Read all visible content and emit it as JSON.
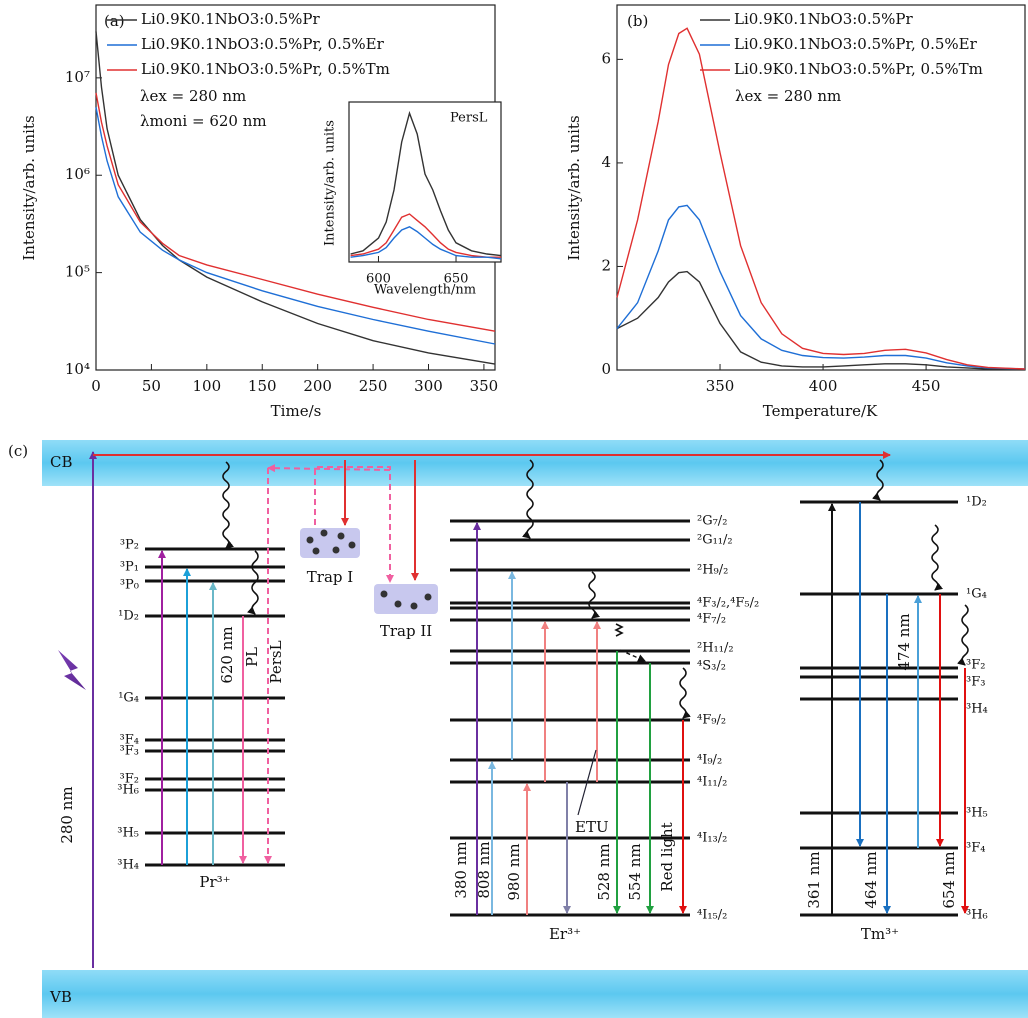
{
  "chart_data": [
    {
      "type": "line",
      "panel_label": "(a)",
      "xlabel": "Time/s",
      "ylabel": "Intensity/arb. units",
      "log_y": true,
      "xlim": [
        0,
        360
      ],
      "ylim": [
        10000,
        56000000
      ],
      "xticks": [
        0,
        50,
        100,
        150,
        200,
        250,
        300,
        350
      ],
      "yticks": [
        {
          "value": 10000,
          "label": "10⁴"
        },
        {
          "value": 100000,
          "label": "10⁵"
        },
        {
          "value": 1000000,
          "label": "10⁶"
        },
        {
          "value": 10000000,
          "label": "10⁷"
        }
      ],
      "annotations": [
        "λex = 280 nm",
        "λmoni = 620 nm"
      ],
      "legend": "upper center",
      "x": [
        0,
        5,
        10,
        20,
        40,
        60,
        75,
        100,
        150,
        200,
        250,
        300,
        360
      ],
      "series": [
        {
          "name": "Li0.9K0.1NbO3:0.5%Pr",
          "color": "#333333",
          "values": [
            30000000,
            8000000,
            3000000,
            1000000,
            350000,
            190000,
            135000,
            90000,
            50000,
            30000,
            20000,
            15000,
            11500
          ]
        },
        {
          "name": "Li0.9K0.1NbO3:0.5%Pr, 0.5%Er",
          "color": "#1f6fd6",
          "values": [
            5000000,
            2500000,
            1400000,
            600000,
            260000,
            170000,
            135000,
            100000,
            65000,
            45000,
            33000,
            25000,
            18500
          ]
        },
        {
          "name": "Li0.9K0.1NbO3:0.5%Pr, 0.5%Tm",
          "color": "#e03030",
          "values": [
            7000000,
            3500000,
            2000000,
            800000,
            330000,
            200000,
            150000,
            120000,
            85000,
            60000,
            44000,
            33000,
            25000
          ]
        }
      ]
    },
    {
      "type": "line",
      "xlabel": "Wavelength/nm",
      "ylabel": "Intensity/arb. units",
      "annotations": [
        "PersL"
      ],
      "xlim": [
        581,
        679
      ],
      "ylim": [
        0,
        1
      ],
      "xticks": [
        600,
        650
      ],
      "x": [
        582,
        590,
        600,
        605,
        610,
        615,
        620,
        625,
        630,
        635,
        640,
        645,
        650,
        660,
        670,
        679
      ],
      "series": [
        {
          "color": "#333333",
          "values": [
            0.05,
            0.07,
            0.15,
            0.25,
            0.45,
            0.75,
            0.93,
            0.8,
            0.55,
            0.45,
            0.32,
            0.2,
            0.12,
            0.07,
            0.05,
            0.04
          ]
        },
        {
          "color": "#e03030",
          "values": [
            0.04,
            0.05,
            0.08,
            0.12,
            0.2,
            0.28,
            0.3,
            0.26,
            0.22,
            0.17,
            0.12,
            0.08,
            0.06,
            0.04,
            0.03,
            0.03
          ]
        },
        {
          "color": "#1f6fd6",
          "values": [
            0.03,
            0.04,
            0.06,
            0.09,
            0.15,
            0.2,
            0.22,
            0.19,
            0.15,
            0.11,
            0.08,
            0.06,
            0.04,
            0.03,
            0.03,
            0.02
          ]
        }
      ]
    },
    {
      "type": "line",
      "panel_label": "(b)",
      "xlabel": "Temperature/K",
      "ylabel": "Intensity/arb. units",
      "xlim": [
        300,
        498
      ],
      "ylim": [
        0,
        7.05
      ],
      "xticks": [
        350,
        400,
        450
      ],
      "yticks": [
        0,
        2,
        4,
        6
      ],
      "annotations": [
        "λex = 280 nm"
      ],
      "legend": "upper right",
      "x": [
        300,
        310,
        320,
        325,
        330,
        334,
        340,
        350,
        360,
        370,
        380,
        390,
        400,
        410,
        420,
        430,
        440,
        450,
        460,
        470,
        480,
        498
      ],
      "series": [
        {
          "name": "Li0.9K0.1NbO3:0.5%Pr",
          "color": "#333333",
          "values": [
            0.8,
            1.0,
            1.4,
            1.7,
            1.88,
            1.9,
            1.7,
            0.9,
            0.35,
            0.15,
            0.08,
            0.06,
            0.06,
            0.08,
            0.1,
            0.12,
            0.12,
            0.1,
            0.06,
            0.04,
            0.02,
            0.01
          ]
        },
        {
          "name": "Li0.9K0.1NbO3:0.5%Pr, 0.5%Er",
          "color": "#1f6fd6",
          "values": [
            0.8,
            1.3,
            2.3,
            2.9,
            3.15,
            3.18,
            2.9,
            1.9,
            1.05,
            0.6,
            0.38,
            0.28,
            0.24,
            0.23,
            0.25,
            0.28,
            0.28,
            0.23,
            0.14,
            0.08,
            0.04,
            0.02
          ]
        },
        {
          "name": "Li0.9K0.1NbO3:0.5%Pr, 0.5%Tm",
          "color": "#e03030",
          "values": [
            1.4,
            2.9,
            4.8,
            5.9,
            6.5,
            6.6,
            6.1,
            4.2,
            2.4,
            1.3,
            0.7,
            0.42,
            0.32,
            0.3,
            0.32,
            0.38,
            0.4,
            0.33,
            0.2,
            0.1,
            0.05,
            0.02
          ]
        }
      ]
    }
  ],
  "diagram": {
    "panel_label": "(c)",
    "cb": "CB",
    "vb": "VB",
    "excitation": "280 nm",
    "traps": [
      "Trap I",
      "Trap II"
    ],
    "pr": {
      "ion": "Pr³⁺",
      "levels": [
        "³P₂",
        "³P₁",
        "³P₀",
        "¹D₂",
        "¹G₄",
        "³F₄",
        "³F₃",
        "³F₂",
        "³H₆",
        "³H₅",
        "³H₄"
      ],
      "labels": [
        "620 nm",
        "PL",
        "PersL"
      ]
    },
    "er": {
      "ion": "Er³⁺",
      "levels": [
        "²G₇/₂",
        "²G₁₁/₂",
        "²H₉/₂",
        "⁴F₃/₂,⁴F₅/₂",
        "⁴F₇/₂",
        "²H₁₁/₂",
        "⁴S₃/₂",
        "⁴F₉/₂",
        "⁴I₉/₂",
        "⁴I₁₁/₂",
        "⁴I₁₃/₂",
        "⁴I₁₅/₂"
      ],
      "labels": [
        "380 nm",
        "808 nm",
        "980 nm",
        "528 nm",
        "554 nm",
        "Red light"
      ],
      "etu": "ETU"
    },
    "tm": {
      "ion": "Tm³⁺",
      "levels": [
        "¹D₂",
        "¹G₄",
        "³F₂",
        "³F₃",
        "³H₄",
        "³H₅",
        "³F₄",
        "³H₆"
      ],
      "labels": [
        "361 nm",
        "474 nm",
        "464 nm",
        "654 nm"
      ]
    }
  }
}
